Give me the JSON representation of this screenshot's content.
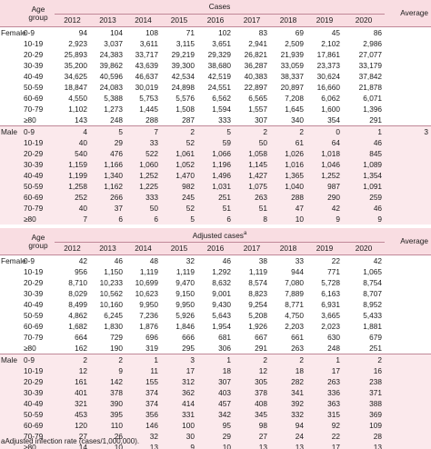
{
  "years": [
    "2012",
    "2013",
    "2014",
    "2015",
    "2016",
    "2017",
    "2018",
    "2019",
    "2020"
  ],
  "age_header": "Age group",
  "average_label": "Average",
  "cases_table": {
    "title": "Cases",
    "groups": [
      {
        "label": "Female",
        "rows": [
          {
            "age": "0-9",
            "values": [
              "94",
              "104",
              "108",
              "71",
              "102",
              "83",
              "69",
              "45",
              "86"
            ]
          },
          {
            "age": "10-19",
            "values": [
              "2,923",
              "3,037",
              "3,611",
              "3,115",
              "3,651",
              "2,941",
              "2,509",
              "2,102",
              "2,986"
            ]
          },
          {
            "age": "20-29",
            "values": [
              "25,893",
              "24,383",
              "33,717",
              "29,219",
              "29,329",
              "26,821",
              "21,939",
              "17,861",
              "27,077"
            ]
          },
          {
            "age": "30-39",
            "values": [
              "35,200",
              "39,862",
              "43,639",
              "39,300",
              "38,680",
              "36,287",
              "33,059",
              "23,373",
              "33,179"
            ]
          },
          {
            "age": "40-49",
            "values": [
              "34,625",
              "40,596",
              "46,637",
              "42,534",
              "42,519",
              "40,383",
              "38,337",
              "30,624",
              "37,842"
            ]
          },
          {
            "age": "50-59",
            "values": [
              "18,847",
              "24,083",
              "30,019",
              "24,898",
              "24,551",
              "22,897",
              "20,897",
              "16,660",
              "21,878"
            ]
          },
          {
            "age": "60-69",
            "values": [
              "4,550",
              "5,388",
              "5,753",
              "5,576",
              "6,562",
              "6,565",
              "7,208",
              "6,062",
              "6,071"
            ]
          },
          {
            "age": "70-79",
            "values": [
              "1,102",
              "1,273",
              "1,445",
              "1,508",
              "1,594",
              "1,557",
              "1,645",
              "1,600",
              "1,396"
            ]
          },
          {
            "age": "≥80",
            "values": [
              "143",
              "248",
              "288",
              "287",
              "333",
              "307",
              "340",
              "354",
              "291"
            ]
          }
        ]
      },
      {
        "label": "Male",
        "rows": [
          {
            "age": "0-9",
            "values": [
              "4",
              "5",
              "7",
              "2",
              "5",
              "2",
              "2",
              "0",
              "1",
              "3"
            ]
          },
          {
            "age": "10-19",
            "values": [
              "40",
              "29",
              "33",
              "52",
              "59",
              "50",
              "61",
              "64",
              "46"
            ]
          },
          {
            "age": "20-29",
            "values": [
              "540",
              "476",
              "522",
              "1,061",
              "1,066",
              "1,058",
              "1,026",
              "1,018",
              "845"
            ]
          },
          {
            "age": "30-39",
            "values": [
              "1,159",
              "1,166",
              "1,060",
              "1,052",
              "1,196",
              "1,145",
              "1,016",
              "1,046",
              "1,089"
            ]
          },
          {
            "age": "40-49",
            "values": [
              "1,199",
              "1,340",
              "1,252",
              "1,470",
              "1,496",
              "1,427",
              "1,365",
              "1,252",
              "1,354"
            ]
          },
          {
            "age": "50-59",
            "values": [
              "1,258",
              "1,162",
              "1,225",
              "982",
              "1,031",
              "1,075",
              "1,040",
              "987",
              "1,091"
            ]
          },
          {
            "age": "60-69",
            "values": [
              "252",
              "266",
              "333",
              "245",
              "251",
              "263",
              "288",
              "290",
              "259"
            ]
          },
          {
            "age": "70-79",
            "values": [
              "40",
              "37",
              "50",
              "52",
              "51",
              "51",
              "47",
              "42",
              "46"
            ]
          },
          {
            "age": "≥80",
            "values": [
              "7",
              "6",
              "6",
              "5",
              "6",
              "8",
              "10",
              "9",
              "9"
            ]
          }
        ]
      }
    ]
  },
  "adjusted_table": {
    "title": "Adjusted cases",
    "title_mark": "a",
    "groups": [
      {
        "label": "Female",
        "rows": [
          {
            "age": "0-9",
            "values": [
              "42",
              "46",
              "48",
              "32",
              "46",
              "38",
              "33",
              "22",
              "42"
            ]
          },
          {
            "age": "10-19",
            "values": [
              "956",
              "1,150",
              "1,119",
              "1,119",
              "1,292",
              "1,119",
              "944",
              "771",
              "1,065"
            ]
          },
          {
            "age": "20-29",
            "values": [
              "8,710",
              "10,233",
              "10,699",
              "9,470",
              "8,632",
              "8,574",
              "7,080",
              "5,728",
              "8,754"
            ]
          },
          {
            "age": "30-39",
            "values": [
              "8,029",
              "10,562",
              "10,623",
              "9,150",
              "9,001",
              "8,823",
              "7,889",
              "6,163",
              "8,707"
            ]
          },
          {
            "age": "40-49",
            "values": [
              "8,499",
              "10,160",
              "9,950",
              "9,950",
              "9,430",
              "9,254",
              "8,771",
              "6,931",
              "8,952"
            ]
          },
          {
            "age": "50-59",
            "values": [
              "4,862",
              "6,245",
              "7,236",
              "5,926",
              "5,643",
              "5,208",
              "4,750",
              "3,665",
              "5,433"
            ]
          },
          {
            "age": "60-69",
            "values": [
              "1,682",
              "1,830",
              "1,876",
              "1,846",
              "1,954",
              "1,926",
              "2,203",
              "2,023",
              "1,881"
            ]
          },
          {
            "age": "70-79",
            "values": [
              "664",
              "729",
              "696",
              "666",
              "681",
              "667",
              "661",
              "630",
              "679"
            ]
          },
          {
            "age": "≥80",
            "values": [
              "162",
              "190",
              "319",
              "295",
              "306",
              "291",
              "263",
              "248",
              "251"
            ]
          }
        ]
      },
      {
        "label": "Male",
        "rows": [
          {
            "age": "0-9",
            "values": [
              "2",
              "2",
              "1",
              "3",
              "1",
              "2",
              "2",
              "1",
              "2"
            ]
          },
          {
            "age": "10-19",
            "values": [
              "12",
              "9",
              "11",
              "17",
              "18",
              "12",
              "18",
              "17",
              "16"
            ]
          },
          {
            "age": "20-29",
            "values": [
              "161",
              "142",
              "155",
              "312",
              "307",
              "305",
              "282",
              "263",
              "238"
            ]
          },
          {
            "age": "30-39",
            "values": [
              "401",
              "378",
              "374",
              "362",
              "403",
              "378",
              "341",
              "336",
              "371"
            ]
          },
          {
            "age": "40-49",
            "values": [
              "321",
              "390",
              "374",
              "414",
              "457",
              "408",
              "392",
              "363",
              "388"
            ]
          },
          {
            "age": "50-59",
            "values": [
              "453",
              "395",
              "356",
              "331",
              "342",
              "345",
              "332",
              "315",
              "369"
            ]
          },
          {
            "age": "60-69",
            "values": [
              "120",
              "110",
              "146",
              "100",
              "95",
              "98",
              "94",
              "92",
              "109"
            ]
          },
          {
            "age": "70-79",
            "values": [
              "27",
              "26",
              "32",
              "30",
              "29",
              "27",
              "24",
              "22",
              "28"
            ]
          },
          {
            "age": "≥80",
            "values": [
              "14",
              "10",
              "13",
              "9",
              "10",
              "13",
              "13",
              "17",
              "13"
            ]
          }
        ]
      }
    ]
  },
  "footnote": "aAdjusted infection rate (cases/1,000,000)."
}
